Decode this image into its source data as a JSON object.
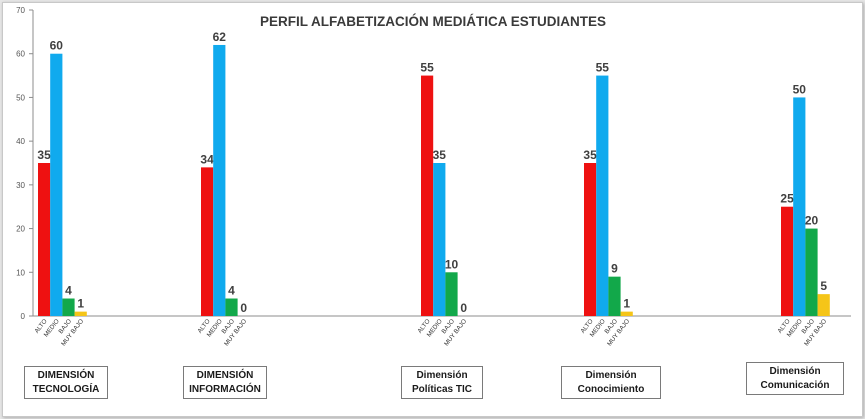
{
  "chart_data": {
    "type": "bar",
    "title": "PERFIL ALFABETIZACIÓN MEDIÁTICA ESTUDIANTES",
    "ylim": [
      0,
      70
    ],
    "yticks": [
      0,
      10,
      20,
      30,
      40,
      50,
      60,
      70
    ],
    "levels": [
      "ALTO",
      "MEDIO",
      "BAJO",
      "MUY BAJO"
    ],
    "colors": [
      "#ee1111",
      "#10aaee",
      "#12a84a",
      "#f5c518"
    ],
    "groups": [
      {
        "line1": "DIMENSIÓN",
        "line2": "TECNOLOGÍA",
        "values": [
          35,
          60,
          4,
          1
        ]
      },
      {
        "line1": "DIMENSIÓN",
        "line2": "INFORMACIÓN",
        "values": [
          34,
          62,
          4,
          0
        ]
      },
      {
        "line1": "Dimensión",
        "line2": "Políticas TIC",
        "values": [
          55,
          35,
          10,
          0
        ]
      },
      {
        "line1": "Dimensión",
        "line2": "Conocimiento",
        "values": [
          35,
          55,
          9,
          1
        ]
      },
      {
        "line1": "Dimensión",
        "line2": "Comunicación",
        "values": [
          25,
          50,
          20,
          5
        ]
      }
    ]
  }
}
